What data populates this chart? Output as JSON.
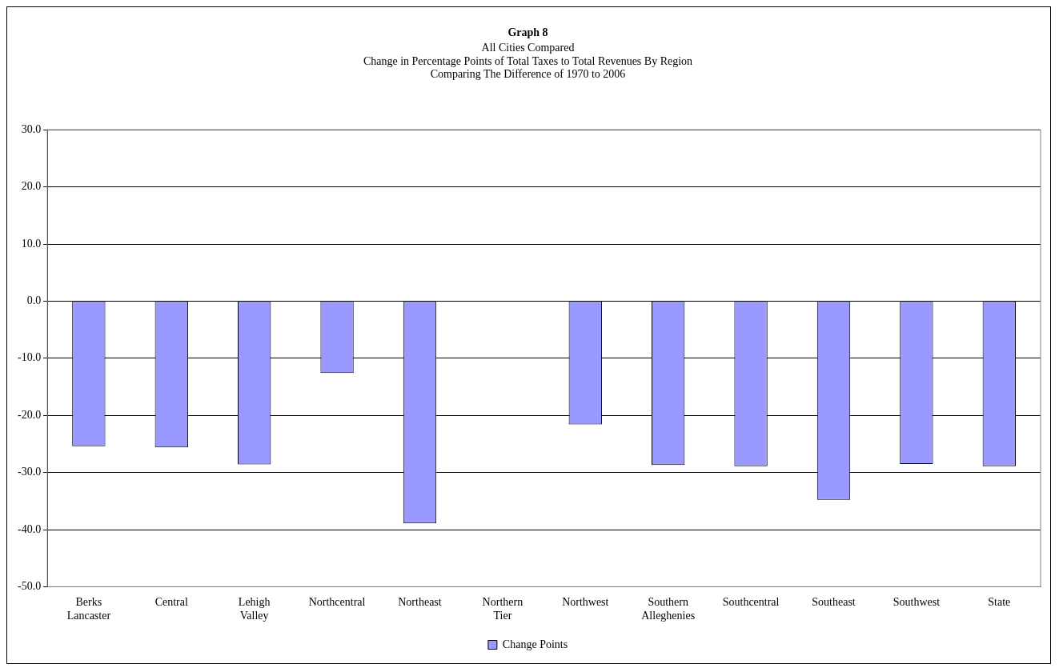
{
  "chart_data": {
    "type": "bar",
    "title": "Graph 8",
    "subtitle": "All Cities Compared\nChange in Percentage Points of Total Taxes to Total Revenues By Region\nComparing The Difference of 1970 to 2006",
    "categories": [
      "Berks Lancaster",
      "Central",
      "Lehigh Valley",
      "Northcentral",
      "Northeast",
      "Northern Tier",
      "Northwest",
      "Southern Alleghenies",
      "Southcentral",
      "Southeast",
      "Southwest",
      "State"
    ],
    "series": [
      {
        "name": "Change Points",
        "color": "#9999ff",
        "values": [
          -25.4,
          -25.6,
          -28.6,
          -12.6,
          -38.9,
          null,
          -21.6,
          -28.7,
          -28.9,
          -34.8,
          -28.5,
          -28.9
        ]
      }
    ],
    "ylim": [
      -50,
      30
    ],
    "yticks": [
      {
        "value": -50,
        "label": "-50.0"
      },
      {
        "value": -40,
        "label": "-40.0"
      },
      {
        "value": -30,
        "label": "-30.0"
      },
      {
        "value": -20,
        "label": "-20.0"
      },
      {
        "value": -10,
        "label": "-10.0"
      },
      {
        "value": 0,
        "label": "0.0"
      },
      {
        "value": 10,
        "label": "10.0"
      },
      {
        "value": 20,
        "label": "20.0"
      },
      {
        "value": 30,
        "label": "30.0"
      }
    ],
    "grid": "y",
    "legend": "bottom"
  }
}
